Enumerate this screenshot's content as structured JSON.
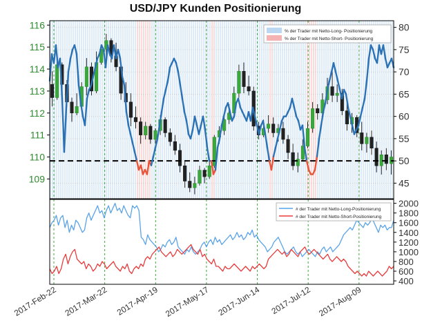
{
  "chart_data": {
    "title": "USD/JPY Kunden Positionierung",
    "x_labels": [
      "2017-Feb-22",
      "2017-Mar-22",
      "2017-Apr-19",
      "2017-May-17",
      "2017-Jun-14",
      "2017-Jul-12",
      "2017-Aug-09"
    ],
    "top_panel": {
      "type": "candlestick+line",
      "left_axis": {
        "ticks": [
          109,
          110,
          111,
          112,
          113,
          114,
          115,
          116
        ],
        "range": [
          108.1,
          116.2
        ],
        "color": "#2e8b2e"
      },
      "right_axis": {
        "ticks": [
          45,
          50,
          55,
          60,
          65,
          70,
          75,
          80
        ],
        "range": [
          41.5,
          81.5
        ]
      },
      "threshold": 50,
      "legend": [
        {
          "label": "% der Trader mit Netto-Long- Positionierung",
          "color": "#bcd7f2"
        },
        {
          "label": "% der Trader mit Netto-Short- Positionierung",
          "color": "#f5b4b4"
        }
      ],
      "long_pct": [
        68,
        74,
        72,
        76,
        71,
        73,
        64,
        52,
        62,
        70,
        73,
        75,
        76,
        74,
        67,
        63,
        60,
        58,
        64,
        66,
        67,
        69,
        71,
        73,
        74,
        76,
        75,
        71,
        76,
        74,
        73,
        76,
        73,
        75,
        73,
        69,
        67,
        61,
        58,
        56,
        54,
        52,
        50,
        48,
        49,
        47,
        48,
        47,
        50,
        49,
        51,
        53,
        55,
        58,
        61,
        64,
        66,
        68,
        71,
        72,
        73,
        72,
        70,
        67,
        64,
        61,
        59,
        56,
        55,
        57,
        60,
        58,
        56,
        58,
        60,
        57,
        53,
        50,
        50,
        47,
        48,
        53,
        55,
        58,
        60,
        62,
        63,
        61,
        59,
        60,
        63,
        64,
        62,
        61,
        60,
        59,
        61,
        59,
        62,
        60,
        58,
        56,
        58,
        59,
        56,
        53,
        50,
        48,
        51,
        53,
        55,
        57,
        59,
        60,
        60,
        61,
        62,
        64,
        62,
        60,
        59,
        57,
        58,
        53,
        50,
        48,
        47,
        47,
        48,
        51,
        55,
        58,
        61,
        63,
        66,
        68,
        70,
        72,
        70,
        68,
        66,
        64,
        66,
        65,
        62,
        60,
        58,
        56,
        57,
        58,
        60,
        62,
        64,
        68,
        73,
        76,
        75,
        73,
        72,
        76,
        74,
        76,
        73,
        71,
        72,
        73,
        71
      ],
      "candles": [
        {
          "o": 113.3,
          "h": 113.9,
          "l": 112.3,
          "c": 112.7
        },
        {
          "o": 112.7,
          "h": 114.6,
          "l": 112.6,
          "c": 114.2
        },
        {
          "o": 114.2,
          "h": 114.3,
          "l": 113.0,
          "c": 113.3
        },
        {
          "o": 113.3,
          "h": 113.5,
          "l": 112.3,
          "c": 112.5
        },
        {
          "o": 112.5,
          "h": 112.7,
          "l": 111.6,
          "c": 112.0
        },
        {
          "o": 112.0,
          "h": 112.9,
          "l": 111.9,
          "c": 112.3
        },
        {
          "o": 112.3,
          "h": 113.4,
          "l": 112.2,
          "c": 113.2
        },
        {
          "o": 113.2,
          "h": 114.5,
          "l": 112.8,
          "c": 114.1
        },
        {
          "o": 114.1,
          "h": 114.3,
          "l": 112.8,
          "c": 113.0
        },
        {
          "o": 113.0,
          "h": 114.8,
          "l": 112.9,
          "c": 114.3
        },
        {
          "o": 114.3,
          "h": 115.1,
          "l": 114.2,
          "c": 114.9
        },
        {
          "o": 114.9,
          "h": 115.6,
          "l": 114.5,
          "c": 115.3
        },
        {
          "o": 115.3,
          "h": 115.4,
          "l": 114.3,
          "c": 114.6
        },
        {
          "o": 114.6,
          "h": 115.2,
          "l": 113.9,
          "c": 114.1
        },
        {
          "o": 114.1,
          "h": 114.3,
          "l": 112.6,
          "c": 112.9
        },
        {
          "o": 112.9,
          "h": 113.4,
          "l": 112.2,
          "c": 112.5
        },
        {
          "o": 112.5,
          "h": 112.9,
          "l": 111.4,
          "c": 111.8
        },
        {
          "o": 111.8,
          "h": 112.3,
          "l": 111.3,
          "c": 111.6
        },
        {
          "o": 111.6,
          "h": 111.8,
          "l": 110.6,
          "c": 111.0
        },
        {
          "o": 111.0,
          "h": 111.6,
          "l": 110.8,
          "c": 111.4
        },
        {
          "o": 111.4,
          "h": 111.5,
          "l": 110.6,
          "c": 110.8
        },
        {
          "o": 110.8,
          "h": 111.3,
          "l": 110.6,
          "c": 111.2
        },
        {
          "o": 111.2,
          "h": 111.9,
          "l": 111.0,
          "c": 111.7
        },
        {
          "o": 111.7,
          "h": 111.8,
          "l": 110.9,
          "c": 111.1
        },
        {
          "o": 111.1,
          "h": 111.3,
          "l": 110.5,
          "c": 110.7
        },
        {
          "o": 110.7,
          "h": 111.0,
          "l": 110.1,
          "c": 110.3
        },
        {
          "o": 110.3,
          "h": 110.6,
          "l": 109.3,
          "c": 109.6
        },
        {
          "o": 109.6,
          "h": 109.8,
          "l": 108.6,
          "c": 108.9
        },
        {
          "o": 108.9,
          "h": 109.3,
          "l": 108.4,
          "c": 108.6
        },
        {
          "o": 108.6,
          "h": 109.1,
          "l": 108.3,
          "c": 108.8
        },
        {
          "o": 108.8,
          "h": 109.6,
          "l": 108.7,
          "c": 109.4
        },
        {
          "o": 109.4,
          "h": 109.5,
          "l": 108.8,
          "c": 109.1
        },
        {
          "o": 109.1,
          "h": 109.9,
          "l": 109.0,
          "c": 109.6
        },
        {
          "o": 109.6,
          "h": 111.0,
          "l": 109.5,
          "c": 110.9
        },
        {
          "o": 110.9,
          "h": 111.4,
          "l": 110.6,
          "c": 111.2
        },
        {
          "o": 111.2,
          "h": 111.9,
          "l": 111.0,
          "c": 111.7
        },
        {
          "o": 111.7,
          "h": 112.4,
          "l": 111.5,
          "c": 112.0
        },
        {
          "o": 112.0,
          "h": 113.2,
          "l": 111.9,
          "c": 112.9
        },
        {
          "o": 112.9,
          "h": 114.2,
          "l": 112.7,
          "c": 113.9
        },
        {
          "o": 113.9,
          "h": 114.3,
          "l": 112.9,
          "c": 113.2
        },
        {
          "o": 113.2,
          "h": 113.7,
          "l": 112.8,
          "c": 113.0
        },
        {
          "o": 113.0,
          "h": 113.2,
          "l": 111.2,
          "c": 111.4
        },
        {
          "o": 111.4,
          "h": 111.6,
          "l": 110.8,
          "c": 111.0
        },
        {
          "o": 111.0,
          "h": 111.7,
          "l": 110.9,
          "c": 111.3
        },
        {
          "o": 111.3,
          "h": 111.9,
          "l": 111.1,
          "c": 111.5
        },
        {
          "o": 111.5,
          "h": 111.8,
          "l": 110.9,
          "c": 111.1
        },
        {
          "o": 111.1,
          "h": 111.5,
          "l": 110.7,
          "c": 111.3
        },
        {
          "o": 111.3,
          "h": 111.6,
          "l": 110.6,
          "c": 110.8
        },
        {
          "o": 110.8,
          "h": 111.0,
          "l": 109.9,
          "c": 110.2
        },
        {
          "o": 110.2,
          "h": 110.6,
          "l": 109.4,
          "c": 109.6
        },
        {
          "o": 109.6,
          "h": 110.2,
          "l": 109.3,
          "c": 109.9
        },
        {
          "o": 109.9,
          "h": 110.8,
          "l": 109.8,
          "c": 110.5
        },
        {
          "o": 110.5,
          "h": 111.6,
          "l": 110.4,
          "c": 111.3
        },
        {
          "o": 111.3,
          "h": 112.5,
          "l": 111.1,
          "c": 112.2
        },
        {
          "o": 112.2,
          "h": 112.4,
          "l": 111.7,
          "c": 112.0
        },
        {
          "o": 112.0,
          "h": 112.9,
          "l": 111.8,
          "c": 112.6
        },
        {
          "o": 112.6,
          "h": 113.6,
          "l": 112.4,
          "c": 113.2
        },
        {
          "o": 113.2,
          "h": 114.0,
          "l": 112.5,
          "c": 112.8
        },
        {
          "o": 112.8,
          "h": 113.3,
          "l": 112.5,
          "c": 112.9
        },
        {
          "o": 112.9,
          "h": 113.1,
          "l": 111.9,
          "c": 112.1
        },
        {
          "o": 112.1,
          "h": 112.6,
          "l": 111.2,
          "c": 111.5
        },
        {
          "o": 111.5,
          "h": 112.0,
          "l": 111.1,
          "c": 111.8
        },
        {
          "o": 111.8,
          "h": 111.9,
          "l": 110.9,
          "c": 111.1
        },
        {
          "o": 111.1,
          "h": 111.6,
          "l": 110.3,
          "c": 110.6
        },
        {
          "o": 110.6,
          "h": 111.1,
          "l": 110.2,
          "c": 110.9
        },
        {
          "o": 110.9,
          "h": 111.2,
          "l": 110.1,
          "c": 110.4
        },
        {
          "o": 110.4,
          "h": 110.7,
          "l": 109.3,
          "c": 109.6
        },
        {
          "o": 109.6,
          "h": 110.3,
          "l": 109.2,
          "c": 110.1
        },
        {
          "o": 110.1,
          "h": 110.4,
          "l": 109.4,
          "c": 109.7
        },
        {
          "o": 109.7,
          "h": 110.3,
          "l": 109.2,
          "c": 110.0
        }
      ]
    },
    "bottom_panel": {
      "type": "line",
      "right_axis": {
        "ticks": [
          400,
          600,
          800,
          1000,
          1200,
          1400,
          1600,
          1800,
          2000
        ],
        "range": [
          330,
          2080
        ]
      },
      "series": [
        {
          "name": "# der Trader mit Netto-Long-Positionierung",
          "color": "#5aa3e8",
          "values": [
            1500,
            1600,
            1650,
            1750,
            1550,
            1700,
            1750,
            1500,
            1650,
            1400,
            1550,
            1450,
            1650,
            1600,
            1500,
            1400,
            1450,
            1700,
            1800,
            1650,
            1750,
            1850,
            1950,
            1800,
            1850,
            1700,
            1850,
            1950,
            1800,
            1900,
            2000,
            1850,
            1900,
            1800,
            1950,
            1850,
            1750,
            1700,
            1950,
            1900,
            1950,
            1850,
            1300,
            1250,
            1150,
            1350,
            1250,
            1200,
            1150,
            1100,
            1000,
            1050,
            1150,
            1100,
            1200,
            1250,
            1150,
            1200,
            1300,
            1100,
            1050,
            1000,
            950,
            1050,
            1000,
            1100,
            1000,
            950,
            1000,
            1050,
            1150,
            1200,
            1100,
            1200,
            1250,
            1150,
            1300,
            1200,
            1250,
            1150,
            1200,
            1250,
            1300,
            1350,
            1250,
            1300,
            1400,
            1300,
            1350,
            1250,
            1300,
            1400,
            1350,
            1450,
            1300,
            1350,
            1250,
            1200,
            1150,
            1100,
            1000,
            1050,
            1100,
            1200,
            1250,
            1300,
            1200,
            1100,
            1000,
            950,
            1000,
            1050,
            1100,
            1000,
            950,
            1000,
            900,
            950,
            1000,
            1050,
            1000,
            950,
            900,
            1000,
            950,
            1050,
            1100,
            1000,
            1050,
            1100,
            1000,
            1050,
            1100,
            1150,
            1250,
            1350,
            1400,
            1450,
            1500,
            1450,
            1550,
            1650,
            1600,
            1550,
            1500,
            1600,
            1550,
            1600,
            1700,
            1600,
            1500,
            1400,
            1550,
            1500,
            1550,
            1450,
            1500,
            1500,
            1650
          ]
        },
        {
          "name": "# der Trader mit Netto-Short-Positionierung",
          "color": "#e83b3b",
          "values": [
            650,
            550,
            600,
            700,
            550,
            650,
            850,
            950,
            750,
            900,
            1000,
            1050,
            850,
            800,
            750,
            800,
            650,
            750,
            700,
            600,
            650,
            750,
            700,
            800,
            750,
            650,
            700,
            750,
            800,
            700,
            650,
            600,
            700,
            650,
            750,
            600,
            550,
            650,
            700,
            650,
            750,
            700,
            850,
            900,
            850,
            950,
            1000,
            1050,
            1100,
            1000,
            950,
            900,
            950,
            1000,
            900,
            950,
            1050,
            1000,
            950,
            1000,
            1050,
            1100,
            1150,
            1050,
            1000,
            950,
            1050,
            900,
            950,
            850,
            800,
            750,
            850,
            700,
            700,
            650,
            600,
            700,
            650,
            650,
            700,
            750,
            700,
            650,
            600,
            650,
            700,
            650,
            600,
            700,
            650,
            700,
            750,
            700,
            650,
            700,
            850,
            900,
            950,
            1000,
            1050,
            1000,
            950,
            1000,
            900,
            950,
            1050,
            1000,
            950,
            900,
            1000,
            1050,
            1100,
            1000,
            950,
            1000,
            1050,
            1000,
            950,
            900,
            850,
            900,
            950,
            850,
            800,
            850,
            900,
            850,
            800,
            850,
            800,
            700,
            650,
            600,
            550,
            600,
            550,
            500,
            550,
            500,
            600,
            550,
            500,
            550,
            600,
            550,
            500,
            550,
            600,
            700,
            650,
            700
          ]
        }
      ]
    }
  }
}
